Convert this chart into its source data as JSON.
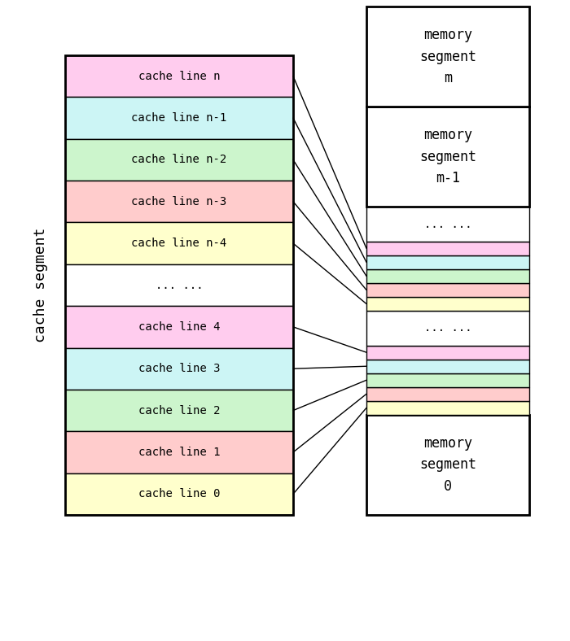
{
  "bg_color": "#ffffff",
  "cache_lines": [
    {
      "label": "cache line n",
      "color": "#ffccee"
    },
    {
      "label": "cache line n-1",
      "color": "#ccf5f5"
    },
    {
      "label": "cache line n-2",
      "color": "#ccf5cc"
    },
    {
      "label": "cache line n-3",
      "color": "#ffcccc"
    },
    {
      "label": "cache line n-4",
      "color": "#ffffcc"
    },
    {
      "label": "... ...",
      "color": "#ffffff"
    },
    {
      "label": "cache line 4",
      "color": "#ffccee"
    },
    {
      "label": "cache line 3",
      "color": "#ccf5f5"
    },
    {
      "label": "cache line 2",
      "color": "#ccf5cc"
    },
    {
      "label": "cache line 1",
      "color": "#ffcccc"
    },
    {
      "label": "cache line 0",
      "color": "#ffffcc"
    }
  ],
  "mem_colored_strips_top": [
    {
      "color": "#ffccee"
    },
    {
      "color": "#ccf5f5"
    },
    {
      "color": "#ccf5cc"
    },
    {
      "color": "#ffcccc"
    },
    {
      "color": "#ffffcc"
    }
  ],
  "mem_colored_strips_bot": [
    {
      "color": "#ffccee"
    },
    {
      "color": "#ccf5f5"
    },
    {
      "color": "#ccf5cc"
    },
    {
      "color": "#ffcccc"
    },
    {
      "color": "#ffffcc"
    }
  ],
  "cache_label": "cache segment",
  "line_color": "#000000",
  "text_color": "#000000",
  "font_family": "monospace",
  "font_size": 10,
  "label_font_size": 13,
  "mem_font_size": 12
}
